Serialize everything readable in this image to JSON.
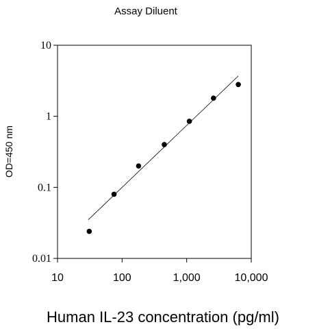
{
  "chart_data": {
    "type": "scatter",
    "title": "Assay Diluent",
    "xlabel": "Human IL-23 concentration (pg/ml)",
    "ylabel": "OD=450 nm",
    "x_scale": "log",
    "y_scale": "log",
    "xlim": [
      10,
      10000
    ],
    "ylim": [
      0.01,
      10
    ],
    "x_ticks": [
      {
        "value": 10,
        "label": "10"
      },
      {
        "value": 100,
        "label": "100"
      },
      {
        "value": 1000,
        "label": "1,000"
      },
      {
        "value": 10000,
        "label": "10,000"
      }
    ],
    "y_ticks": [
      {
        "value": 0.01,
        "label": "0.01"
      },
      {
        "value": 0.1,
        "label": "0.1"
      },
      {
        "value": 1,
        "label": "1"
      },
      {
        "value": 10,
        "label": "10"
      }
    ],
    "grid": false,
    "series": [
      {
        "x": [
          31,
          75,
          180,
          450,
          1100,
          2600,
          6300
        ],
        "y": [
          0.024,
          0.08,
          0.2,
          0.4,
          0.85,
          1.8,
          2.8
        ]
      }
    ],
    "fit_line": {
      "x": [
        30,
        6300
      ],
      "y": [
        0.035,
        3.7
      ]
    }
  }
}
